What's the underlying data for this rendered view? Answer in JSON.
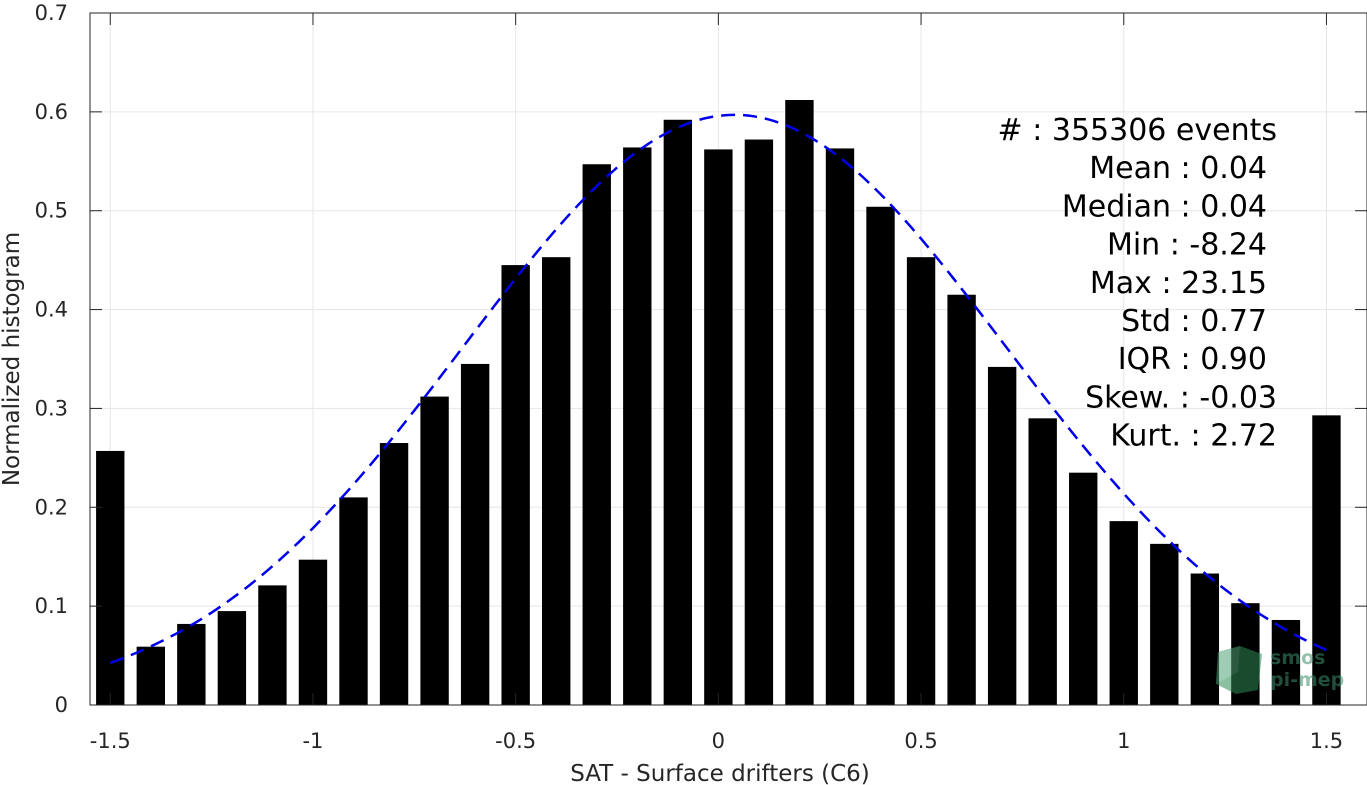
{
  "chart_data": {
    "type": "bar",
    "title": "",
    "xlabel": "SAT - Surface drifters (C6)",
    "ylabel": "Normalized histogram",
    "xlim": [
      -1.55,
      1.6
    ],
    "ylim": [
      0,
      0.7
    ],
    "grid": true,
    "xticks": [
      -1.5,
      -1,
      -0.5,
      0,
      0.5,
      1,
      1.5
    ],
    "xtick_labels": [
      "-1.5",
      "-1",
      "-0.5",
      "0",
      "0.5",
      "1",
      "1.5"
    ],
    "yticks": [
      0,
      0.1,
      0.2,
      0.3,
      0.4,
      0.5,
      0.6,
      0.7
    ],
    "ytick_labels": [
      "0",
      "0.1",
      "0.2",
      "0.3",
      "0.4",
      "0.5",
      "0.6",
      "0.7"
    ],
    "bar_width": 0.07,
    "x": [
      -1.5,
      -1.4,
      -1.3,
      -1.2,
      -1.1,
      -1.0,
      -0.9,
      -0.8,
      -0.7,
      -0.6,
      -0.5,
      -0.4,
      -0.3,
      -0.2,
      -0.1,
      0.0,
      0.1,
      0.2,
      0.3,
      0.4,
      0.5,
      0.6,
      0.7,
      0.8,
      0.9,
      1.0,
      1.1,
      1.2,
      1.3,
      1.4,
      1.5
    ],
    "values": [
      0.257,
      0.059,
      0.082,
      0.095,
      0.121,
      0.147,
      0.21,
      0.265,
      0.312,
      0.345,
      0.445,
      0.453,
      0.547,
      0.564,
      0.592,
      0.562,
      0.572,
      0.612,
      0.563,
      0.504,
      0.453,
      0.415,
      0.342,
      0.29,
      0.235,
      0.186,
      0.163,
      0.133,
      0.103,
      0.086,
      0.293
    ],
    "bar_color": "#000000",
    "fit_curve": {
      "style": "dashed",
      "color": "#0000ee",
      "mean": 0.04,
      "std": 0.67,
      "peak": 0.597,
      "x_range": [
        -1.5,
        1.5
      ]
    },
    "stats_lines": [
      "#  : 355306 events",
      "Mean : 0.04",
      "Median : 0.04",
      "Min : -8.24",
      "Max : 23.15",
      "Std : 0.77",
      "IQR : 0.90",
      "Skew. : -0.03",
      "Kurt. : 2.72"
    ],
    "watermark": [
      "smos",
      "pi-mep"
    ]
  }
}
